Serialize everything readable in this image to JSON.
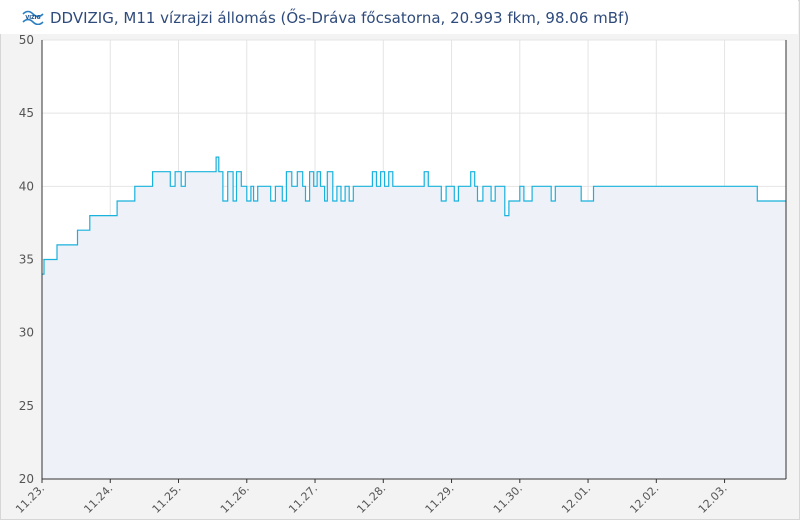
{
  "header": {
    "logo_text": "VIZIG",
    "title": "DDVIZIG, M11 vízrajzi állomás (Ős-Dráva főcsatorna, 20.993 fkm, 98.06 mBf)"
  },
  "colors": {
    "line": "#19b2dc",
    "area": "#eef1f7",
    "grid": "#e4e4e4",
    "plot_bg": "#ffffff",
    "title": "#2f4b7c"
  },
  "chart_data": {
    "type": "line",
    "title": "DDVIZIG, M11 vízrajzi állomás (Ős-Dráva főcsatorna, 20.993 fkm, 98.06 mBf)",
    "xlabel": "",
    "ylabel": "",
    "ylim": [
      20,
      50
    ],
    "yticks": [
      20,
      25,
      30,
      35,
      40,
      45,
      50
    ],
    "xlim": [
      0,
      10.9
    ],
    "xtick_values": [
      0,
      1,
      2,
      3,
      4,
      5,
      6,
      7,
      8,
      9,
      10
    ],
    "xtick_labels": [
      "11.23.",
      "11.24.",
      "11.25.",
      "11.26.",
      "11.27.",
      "11.28.",
      "11.29.",
      "11.30.",
      "12.01.",
      "12.02.",
      "12.03."
    ],
    "grid": true,
    "area_fill": true,
    "step": true,
    "points": [
      [
        0.0,
        34
      ],
      [
        0.03,
        35
      ],
      [
        0.22,
        36
      ],
      [
        0.52,
        37
      ],
      [
        0.7,
        38
      ],
      [
        1.1,
        39
      ],
      [
        1.36,
        40
      ],
      [
        1.62,
        41
      ],
      [
        1.88,
        40
      ],
      [
        1.95,
        41
      ],
      [
        2.04,
        40
      ],
      [
        2.1,
        41
      ],
      [
        2.55,
        42
      ],
      [
        2.59,
        41
      ],
      [
        2.65,
        39
      ],
      [
        2.72,
        41
      ],
      [
        2.8,
        39
      ],
      [
        2.85,
        41
      ],
      [
        2.92,
        40
      ],
      [
        3.0,
        39
      ],
      [
        3.06,
        40
      ],
      [
        3.1,
        39
      ],
      [
        3.16,
        40
      ],
      [
        3.35,
        39
      ],
      [
        3.42,
        40
      ],
      [
        3.52,
        39
      ],
      [
        3.58,
        41
      ],
      [
        3.66,
        40
      ],
      [
        3.74,
        41
      ],
      [
        3.82,
        40
      ],
      [
        3.86,
        39
      ],
      [
        3.92,
        41
      ],
      [
        3.98,
        40
      ],
      [
        4.03,
        41
      ],
      [
        4.08,
        40
      ],
      [
        4.14,
        39
      ],
      [
        4.18,
        41
      ],
      [
        4.26,
        39
      ],
      [
        4.32,
        40
      ],
      [
        4.38,
        39
      ],
      [
        4.44,
        40
      ],
      [
        4.5,
        39
      ],
      [
        4.56,
        40
      ],
      [
        4.84,
        41
      ],
      [
        4.9,
        40
      ],
      [
        4.96,
        41
      ],
      [
        5.02,
        40
      ],
      [
        5.08,
        41
      ],
      [
        5.14,
        40
      ],
      [
        5.6,
        41
      ],
      [
        5.66,
        40
      ],
      [
        5.85,
        39
      ],
      [
        5.92,
        40
      ],
      [
        6.04,
        39
      ],
      [
        6.1,
        40
      ],
      [
        6.28,
        41
      ],
      [
        6.34,
        40
      ],
      [
        6.38,
        39
      ],
      [
        6.46,
        40
      ],
      [
        6.58,
        39
      ],
      [
        6.64,
        40
      ],
      [
        6.78,
        38
      ],
      [
        6.84,
        39
      ],
      [
        7.0,
        40
      ],
      [
        7.06,
        39
      ],
      [
        7.18,
        40
      ],
      [
        7.46,
        39
      ],
      [
        7.52,
        40
      ],
      [
        7.9,
        39
      ],
      [
        8.08,
        40
      ],
      [
        10.48,
        39
      ]
    ],
    "x_end": 10.9
  }
}
